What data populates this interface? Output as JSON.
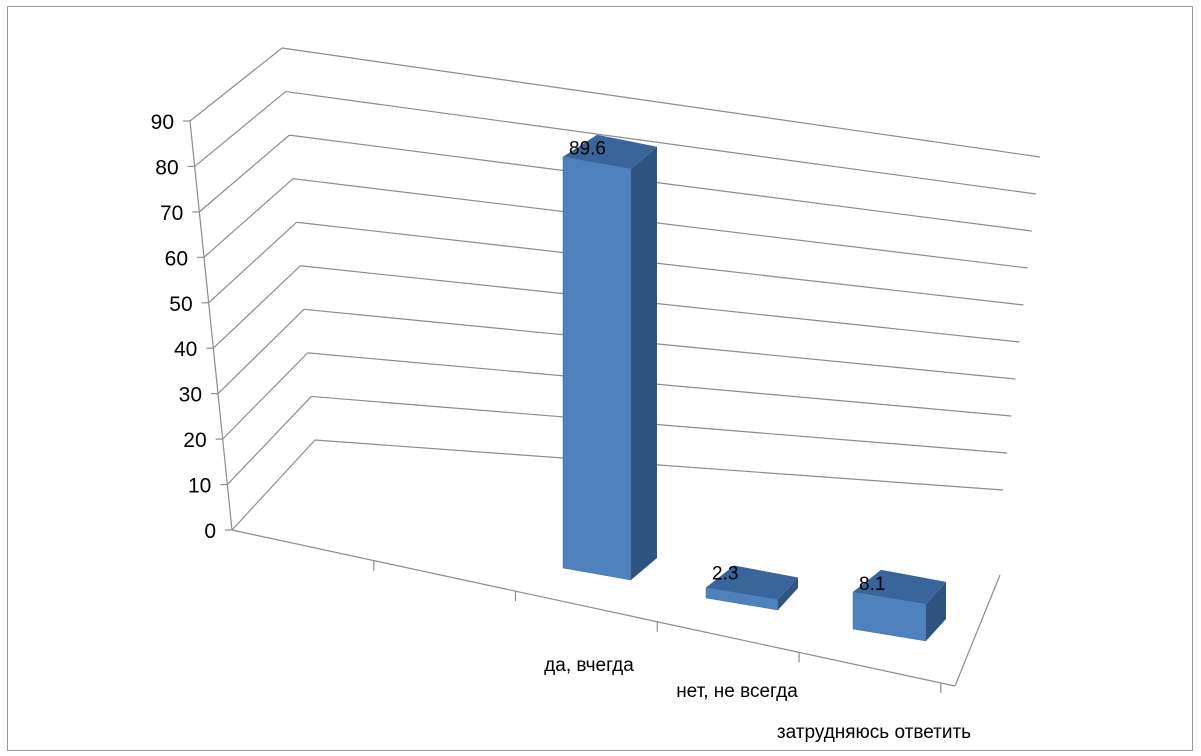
{
  "chart_data": {
    "type": "bar",
    "categories": [
      "да, вчегда",
      "нет, не всегда",
      "затрудняюсь ответить"
    ],
    "values": [
      89.6,
      2.3,
      8.1
    ],
    "data_labels": [
      "89.6",
      "2.3",
      "8.1"
    ],
    "y_ticks": [
      "0",
      "10",
      "20",
      "30",
      "40",
      "50",
      "60",
      "70",
      "80",
      "90"
    ],
    "ylim": [
      0,
      90
    ],
    "grid": true,
    "legend": "none",
    "three_d": true,
    "colors": {
      "bar_front": "#4f81bd",
      "bar_top": "#3a659a",
      "bar_side": "#2f5480",
      "grid": "#8c8c8c"
    }
  }
}
